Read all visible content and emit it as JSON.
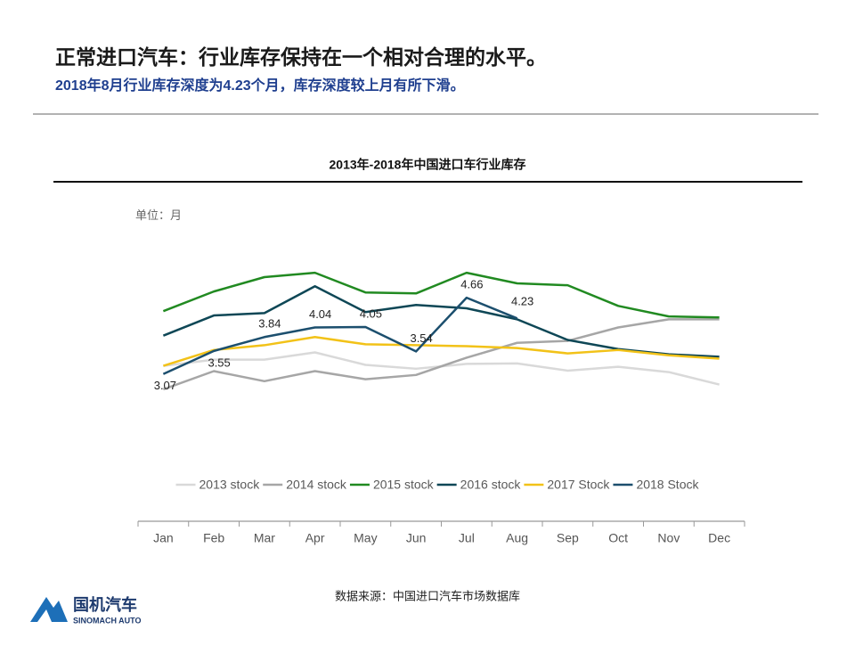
{
  "header": {
    "title": "正常进口汽车：行业库存保持在一个相对合理的水平。",
    "subtitle": "2018年8月行业库存深度为4.23个月，库存深度较上月有所下滑。"
  },
  "chart_data": {
    "type": "line",
    "title": "2013年-2018年中国进口车行业库存",
    "unit_label": "单位：月",
    "categories": [
      "Jan",
      "Feb",
      "Mar",
      "Apr",
      "May",
      "Jun",
      "Jul",
      "Aug",
      "Sep",
      "Oct",
      "Nov",
      "Dec"
    ],
    "ylim": [
      0,
      6
    ],
    "series": [
      {
        "name": "2013 stock",
        "color": "#d9d9d9",
        "values": [
          3.24,
          3.37,
          3.37,
          3.52,
          3.26,
          3.18,
          3.28,
          3.29,
          3.14,
          3.22,
          3.11,
          2.85
        ]
      },
      {
        "name": "2014 stock",
        "color": "#a6a6a6",
        "values": [
          2.75,
          3.13,
          2.92,
          3.13,
          2.96,
          3.05,
          3.41,
          3.72,
          3.76,
          4.04,
          4.21,
          4.21
        ]
      },
      {
        "name": "2015 stock",
        "color": "#218a21",
        "values": [
          4.38,
          4.79,
          5.09,
          5.18,
          4.77,
          4.75,
          5.18,
          4.96,
          4.92,
          4.49,
          4.27,
          4.25
        ]
      },
      {
        "name": "2016 stock",
        "color": "#0e4756",
        "values": [
          3.87,
          4.29,
          4.34,
          4.9,
          4.36,
          4.51,
          4.44,
          4.21,
          3.78,
          3.59,
          3.48,
          3.43
        ]
      },
      {
        "name": "2017 Stock",
        "color": "#f2c218",
        "values": [
          3.24,
          3.57,
          3.67,
          3.84,
          3.69,
          3.67,
          3.65,
          3.61,
          3.5,
          3.57,
          3.46,
          3.39
        ]
      },
      {
        "name": "2018 Stock",
        "color": "#1c4f6e",
        "values": [
          3.07,
          3.55,
          3.84,
          4.04,
          4.05,
          3.54,
          4.66,
          4.23,
          null,
          null,
          null,
          null
        ],
        "show_labels": true
      }
    ]
  },
  "source": "数据来源：中国进口汽车市场数据库",
  "logo": {
    "name": "国机汽车",
    "sub": "SINOMACH AUTO"
  }
}
